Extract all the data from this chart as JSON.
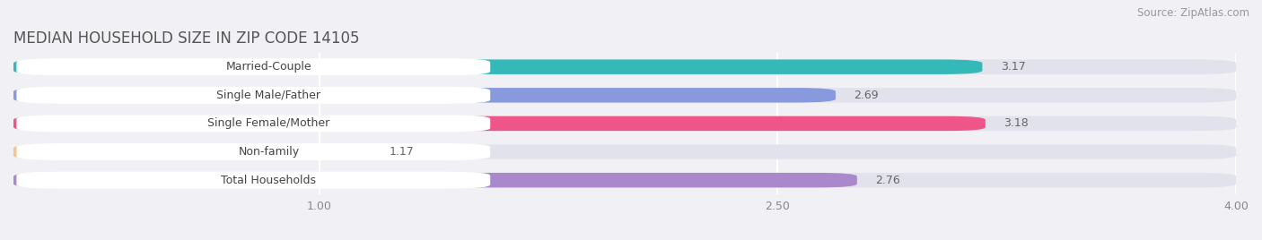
{
  "title": "MEDIAN HOUSEHOLD SIZE IN ZIP CODE 14105",
  "source": "Source: ZipAtlas.com",
  "categories": [
    "Married-Couple",
    "Single Male/Father",
    "Single Female/Mother",
    "Non-family",
    "Total Households"
  ],
  "values": [
    3.17,
    2.69,
    3.18,
    1.17,
    2.76
  ],
  "bar_colors": [
    "#35b8b8",
    "#8899dd",
    "#ee5588",
    "#f5c48a",
    "#aa88cc"
  ],
  "xlim": [
    0.0,
    4.0
  ],
  "xmin": 0.0,
  "xticks": [
    1.0,
    2.5,
    4.0
  ],
  "xtick_labels": [
    "1.00",
    "2.50",
    "4.00"
  ],
  "background_color": "#f0f0f5",
  "bar_bg_color": "#e2e2ec",
  "title_fontsize": 12,
  "source_fontsize": 8.5,
  "label_fontsize": 9,
  "value_fontsize": 9,
  "bar_height": 0.52,
  "bar_gap": 0.18,
  "bar_label_color": "#555555",
  "label_text_color": "#444444",
  "value_label_color": "#666666"
}
